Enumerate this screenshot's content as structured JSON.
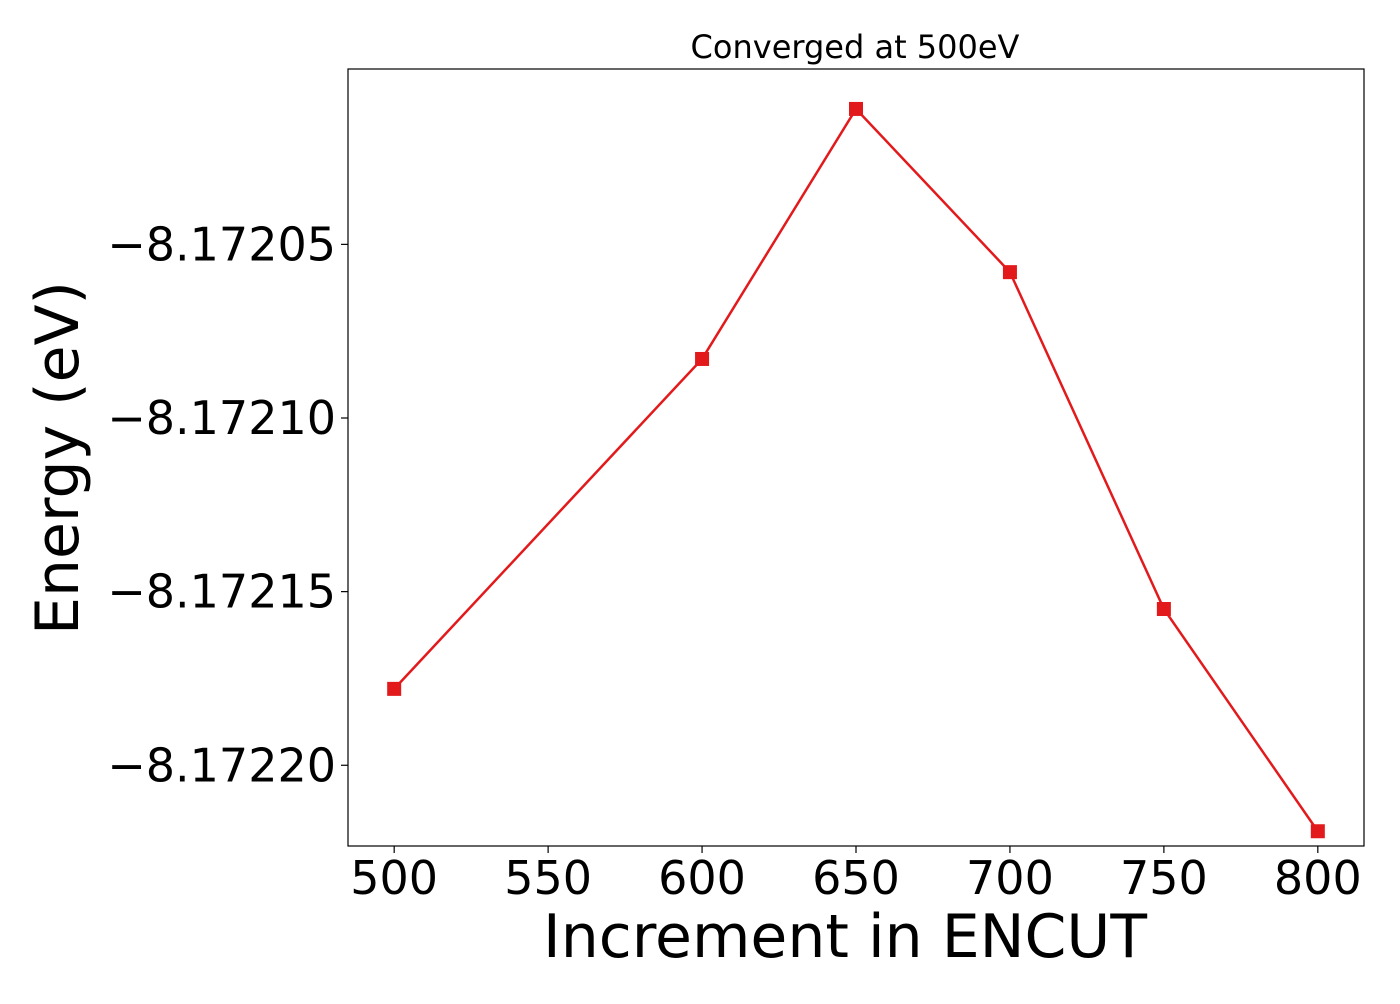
{
  "chart_data": {
    "type": "line",
    "title": "Converged at 500eV",
    "xlabel": "Increment in ENCUT",
    "ylabel": "Energy (eV)",
    "x": [
      500,
      600,
      650,
      700,
      750,
      800
    ],
    "series": [
      {
        "values": [
          -8.172178,
          -8.172083,
          -8.172011,
          -8.172058,
          -8.172155,
          -8.172219
        ],
        "color": "#e31a1c",
        "marker": "square"
      }
    ],
    "xlim": [
      485,
      815
    ],
    "ylim": [
      -8.17222325,
      -8.1719995
    ],
    "xticks": [
      500,
      550,
      600,
      650,
      700,
      750,
      800
    ],
    "xtick_labels": [
      "500",
      "550",
      "600",
      "650",
      "700",
      "750",
      "800"
    ],
    "yticks": [
      -8.17205,
      -8.1721,
      -8.17215,
      -8.1722
    ],
    "ytick_labels": [
      "−8.17205",
      "−8.17210",
      "−8.17215",
      "−8.17220"
    ],
    "grid": false,
    "legend": "none"
  }
}
